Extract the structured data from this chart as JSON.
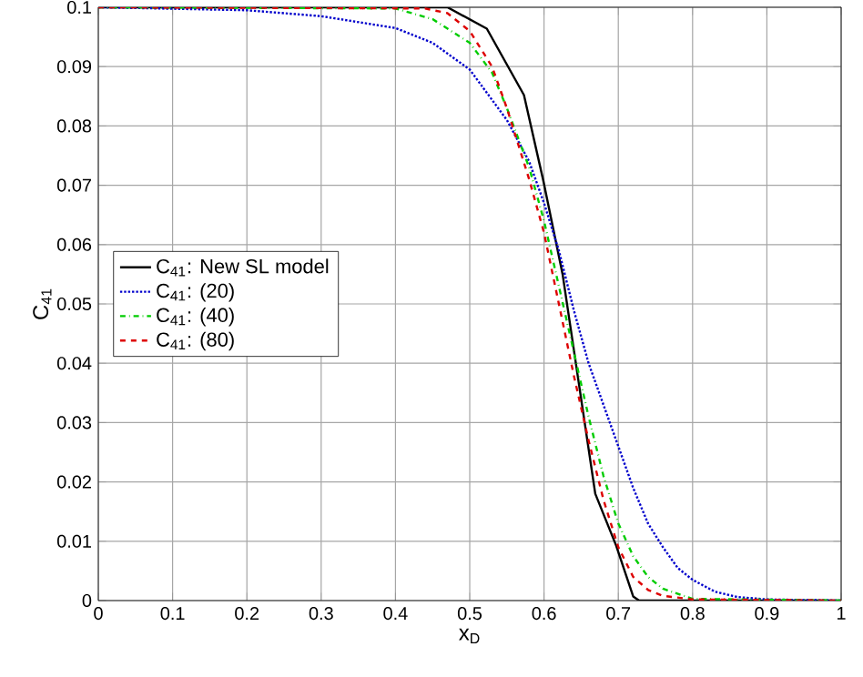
{
  "chart_data": {
    "type": "line",
    "xlabel": "x$_{D}$",
    "ylabel": "C$_{41}$",
    "xlim": [
      0,
      1
    ],
    "ylim": [
      0,
      0.1
    ],
    "xticks": [
      0,
      0.1,
      0.2,
      0.3,
      0.4,
      0.5,
      0.6,
      0.7,
      0.8,
      0.9,
      1
    ],
    "yticks": [
      0,
      0.01,
      0.02,
      0.03,
      0.04,
      0.05,
      0.06,
      0.07,
      0.08,
      0.09,
      0.1
    ],
    "grid": true,
    "legend": "left",
    "marker": "none",
    "series": [
      {
        "name": "C$_{41}$: New SL model",
        "color": "#000000",
        "line_style": "solid",
        "x": [
          0,
          0.47,
          0.523,
          0.573,
          0.599,
          0.625,
          0.669,
          0.697,
          0.72,
          0.728,
          1
        ],
        "values": [
          0.1,
          0.1,
          0.0964,
          0.0852,
          0.0708,
          0.055,
          0.018,
          0.0093,
          0.0007,
          0,
          0
        ]
      },
      {
        "name": "C$_{41}$: (20)",
        "color": "#0000cc",
        "line_style": "dotted",
        "x": [
          0,
          0.2,
          0.3,
          0.4,
          0.45,
          0.5,
          0.55,
          0.58,
          0.6,
          0.62,
          0.64,
          0.66,
          0.68,
          0.7,
          0.72,
          0.74,
          0.76,
          0.78,
          0.8,
          0.83,
          0.86,
          0.9,
          1
        ],
        "values": [
          0.1,
          0.0995,
          0.0985,
          0.0965,
          0.094,
          0.0895,
          0.081,
          0.074,
          0.067,
          0.059,
          0.049,
          0.04,
          0.033,
          0.026,
          0.019,
          0.013,
          0.009,
          0.0055,
          0.0035,
          0.0015,
          0.0006,
          0.0002,
          0
        ]
      },
      {
        "name": "C$_{41}$: (40)",
        "color": "#00cc00",
        "line_style": "dashdot",
        "x": [
          0,
          0.4,
          0.45,
          0.5,
          0.53,
          0.55,
          0.58,
          0.6,
          0.62,
          0.64,
          0.66,
          0.68,
          0.7,
          0.72,
          0.74,
          0.76,
          0.8,
          1
        ],
        "values": [
          0.1,
          0.0998,
          0.098,
          0.094,
          0.089,
          0.083,
          0.073,
          0.064,
          0.053,
          0.042,
          0.031,
          0.021,
          0.013,
          0.0075,
          0.004,
          0.002,
          0.0003,
          0
        ]
      },
      {
        "name": "C$_{41}$: (80)",
        "color": "#dd0000",
        "line_style": "dashed",
        "x": [
          0,
          0.44,
          0.47,
          0.5,
          0.53,
          0.55,
          0.58,
          0.6,
          0.62,
          0.64,
          0.66,
          0.68,
          0.7,
          0.72,
          0.74,
          0.76,
          0.8,
          1
        ],
        "values": [
          0.1,
          0.0998,
          0.099,
          0.096,
          0.09,
          0.083,
          0.071,
          0.062,
          0.05,
          0.038,
          0.027,
          0.017,
          0.009,
          0.004,
          0.0018,
          0.0008,
          0.0002,
          0
        ]
      }
    ]
  }
}
